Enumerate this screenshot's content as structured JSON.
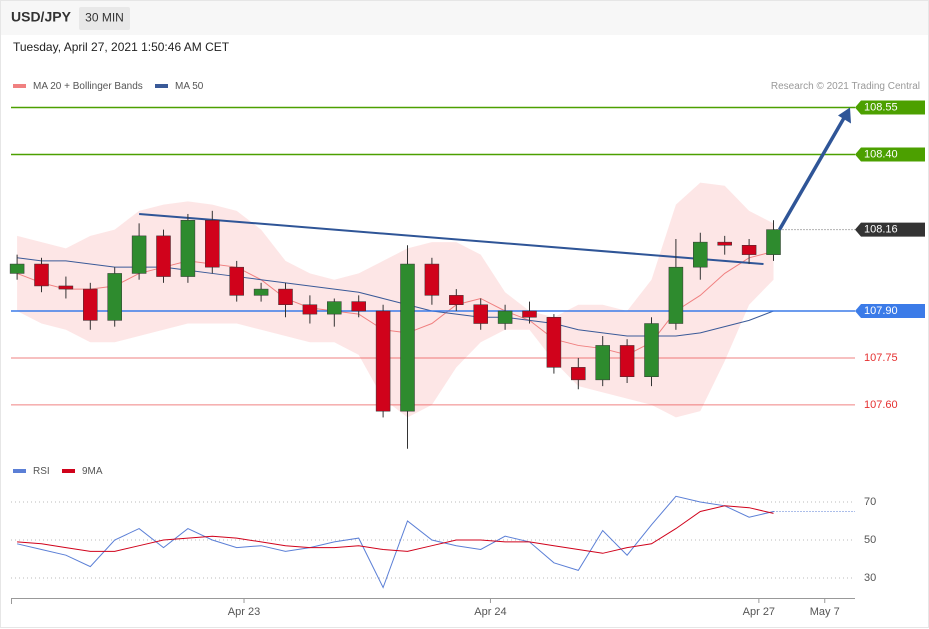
{
  "chart_data": {
    "type": "candlestick",
    "symbol": "USD/JPY",
    "interval": "30 MIN",
    "timestamp": "Tuesday, April 27, 2021 1:50:46 AM CET",
    "legend": {
      "ma20": "MA 20 + Bollinger Bands",
      "ma50": "MA 50",
      "credit": "Research © 2021 Trading Central",
      "rsi": "RSI",
      "rsi_ma": "9MA"
    },
    "colors": {
      "up": "#2e8b2e",
      "down": "#d0021b",
      "band": "#fde0e0",
      "ma20": "#f08080",
      "ma50": "#3a5a98",
      "rsi": "#5b7fd6",
      "rsi_ma": "#d0021b",
      "trend": "#2f5597"
    },
    "ylim": [
      107.44,
      108.59
    ],
    "xlim": [
      -0.25,
      34.34
    ],
    "xticks": [
      {
        "value": 9.3,
        "label": "Apr 23"
      },
      {
        "value": 19.4,
        "label": "Apr 24"
      },
      {
        "value": 30.4,
        "label": "Apr 27"
      },
      {
        "value": 33.1,
        "label": "May 7"
      }
    ],
    "levels": [
      {
        "value": 108.55,
        "label": "108.55",
        "color": "#4ca000",
        "style": "box"
      },
      {
        "value": 108.4,
        "label": "108.40",
        "color": "#4ca000",
        "style": "box"
      },
      {
        "value": 108.16,
        "label": "108.16",
        "color": "#333333",
        "style": "current"
      },
      {
        "value": 107.9,
        "label": "107.90",
        "color": "#3b7be8",
        "style": "box"
      },
      {
        "value": 107.75,
        "label": "107.75",
        "color": "#e53030",
        "style": "text"
      },
      {
        "value": 107.6,
        "label": "107.60",
        "color": "#e53030",
        "style": "text"
      }
    ],
    "open": [
      108.02,
      108.05,
      107.98,
      107.97,
      107.87,
      108.02,
      108.14,
      108.01,
      108.19,
      108.04,
      107.95,
      107.97,
      107.92,
      107.89,
      107.93,
      107.9,
      107.58,
      108.05,
      107.95,
      107.92,
      107.86,
      107.9,
      107.88,
      107.72,
      107.68,
      107.79,
      107.69,
      107.86,
      108.04,
      108.12,
      108.11,
      108.08
    ],
    "high": [
      108.08,
      108.07,
      108.01,
      107.99,
      108.04,
      108.18,
      108.16,
      108.21,
      108.22,
      108.06,
      107.99,
      107.99,
      107.95,
      107.94,
      107.95,
      107.92,
      108.11,
      108.07,
      107.97,
      107.94,
      107.92,
      107.93,
      107.89,
      107.75,
      107.82,
      107.81,
      107.88,
      108.13,
      108.15,
      108.14,
      108.13,
      108.19
    ],
    "low": [
      108.0,
      107.96,
      107.94,
      107.84,
      107.85,
      108.0,
      107.99,
      107.99,
      108.02,
      107.93,
      107.93,
      107.88,
      107.86,
      107.85,
      107.88,
      107.56,
      107.46,
      107.92,
      107.9,
      107.84,
      107.84,
      107.86,
      107.7,
      107.65,
      107.66,
      107.67,
      107.66,
      107.84,
      108.0,
      108.08,
      108.05,
      108.06
    ],
    "close": [
      108.05,
      107.98,
      107.97,
      107.87,
      108.02,
      108.14,
      108.01,
      108.19,
      108.04,
      107.95,
      107.97,
      107.92,
      107.89,
      107.93,
      107.9,
      107.58,
      108.05,
      107.95,
      107.92,
      107.86,
      107.9,
      107.88,
      107.72,
      107.68,
      107.79,
      107.69,
      107.86,
      108.04,
      108.12,
      108.11,
      108.08,
      108.16
    ],
    "bb_upper": [
      108.14,
      108.12,
      108.1,
      108.14,
      108.16,
      108.22,
      108.24,
      108.25,
      108.24,
      108.22,
      108.16,
      108.06,
      108.02,
      108.0,
      108.02,
      108.06,
      108.1,
      108.12,
      108.12,
      108.08,
      107.96,
      107.9,
      107.88,
      107.92,
      107.92,
      107.9,
      108.0,
      108.24,
      108.31,
      108.3,
      108.22,
      108.18
    ],
    "bb_lower": [
      107.9,
      107.86,
      107.84,
      107.8,
      107.8,
      107.82,
      107.84,
      107.86,
      107.86,
      107.86,
      107.84,
      107.82,
      107.8,
      107.8,
      107.76,
      107.62,
      107.56,
      107.6,
      107.72,
      107.8,
      107.84,
      107.84,
      107.74,
      107.66,
      107.64,
      107.62,
      107.6,
      107.56,
      107.58,
      107.74,
      107.92,
      108.0
    ],
    "ma20": [
      108.02,
      107.99,
      107.97,
      107.97,
      107.98,
      108.02,
      108.04,
      108.06,
      108.05,
      108.04,
      108.0,
      107.94,
      107.91,
      107.9,
      107.89,
      107.84,
      107.83,
      107.86,
      107.92,
      107.94,
      107.9,
      107.87,
      107.81,
      107.79,
      107.78,
      107.76,
      107.8,
      107.9,
      107.95,
      108.02,
      108.07,
      108.09
    ],
    "ma50": [
      108.07,
      108.06,
      108.06,
      108.05,
      108.04,
      108.04,
      108.04,
      108.03,
      108.02,
      108.01,
      108.0,
      107.99,
      107.98,
      107.97,
      107.96,
      107.94,
      107.92,
      107.9,
      107.89,
      107.88,
      107.88,
      107.87,
      107.86,
      107.84,
      107.83,
      107.82,
      107.82,
      107.82,
      107.83,
      107.85,
      107.87,
      107.9
    ],
    "trendline": {
      "start": 108.21,
      "end": 108.05
    },
    "rsi": [
      48,
      45,
      42,
      36,
      50,
      56,
      46,
      56,
      50,
      46,
      47,
      44,
      46,
      49,
      51,
      25,
      60,
      50,
      47,
      45,
      52,
      49,
      38,
      34,
      55,
      42,
      58,
      73,
      70,
      68,
      62,
      65
    ],
    "rsi_ma": [
      49,
      48,
      46,
      44,
      44,
      47,
      50,
      51,
      52,
      51,
      49,
      47,
      46,
      46,
      47,
      45,
      44,
      47,
      50,
      50,
      49,
      49,
      47,
      45,
      43,
      46,
      48,
      56,
      65,
      68,
      67,
      64
    ],
    "rsi_ylim": [
      20,
      76
    ],
    "rsi_yticks": [
      70,
      50,
      30
    ]
  }
}
